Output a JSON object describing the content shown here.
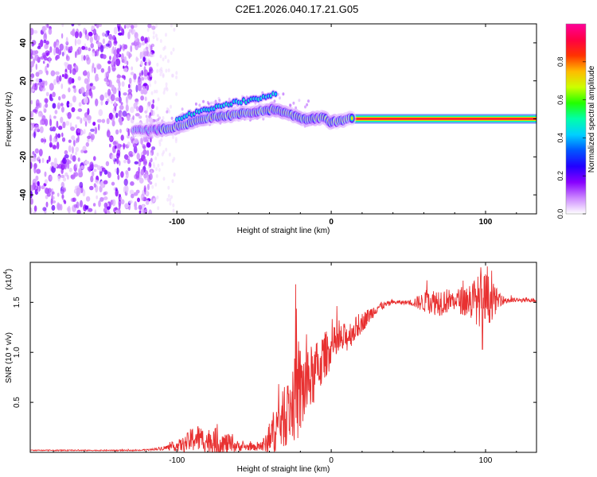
{
  "figure": {
    "title": "C2E1.2026.040.17.21.G05"
  },
  "chart_data": [
    {
      "type": "heatmap",
      "name": "spectrogram",
      "xlabel": "Height of straight line (km)",
      "ylabel": "Frequency (Hz)",
      "xlim": [
        -195,
        133
      ],
      "ylim": [
        -50,
        50
      ],
      "xticks": [
        -100,
        0,
        100
      ],
      "xtick_labels": [
        "-100",
        "0",
        "100"
      ],
      "yticks": [
        -40,
        -20,
        0,
        20,
        40
      ],
      "ytick_labels": [
        "-40",
        "-20",
        "0",
        "20",
        "40"
      ],
      "noise_region_x": [
        -195,
        -115
      ],
      "signal_trace": {
        "x": [
          -125,
          -115,
          -105,
          -95,
          -85,
          -75,
          -65,
          -55,
          -45,
          -38,
          -32,
          -25,
          -18,
          -10,
          -5,
          0,
          5,
          12,
          133
        ],
        "y": [
          -6,
          -6,
          -5,
          -3,
          0,
          1,
          2,
          3,
          4,
          5,
          4,
          2,
          0,
          0,
          1,
          -2,
          -1,
          0,
          0
        ]
      },
      "upper_branch": {
        "x": [
          -100,
          -90,
          -80,
          -70,
          -60,
          -50,
          -42,
          -35
        ],
        "y": [
          0,
          3,
          5,
          7,
          9,
          10,
          12,
          13
        ]
      },
      "colorbar": {
        "label": "Normalized spectral amplitude",
        "range": [
          0,
          1
        ],
        "ticks": [
          0.0,
          0.2,
          0.4,
          0.6,
          0.8
        ],
        "tick_labels": [
          "0.0",
          "0.2",
          "0.4",
          "0.6",
          "0.8"
        ],
        "colors": [
          "#ffffff",
          "#cc88ff",
          "#8800ff",
          "#2200ff",
          "#0055ff",
          "#00d0ff",
          "#00ffaa",
          "#22ff00",
          "#ccff00",
          "#ffbb00",
          "#ff3300",
          "#ff0044",
          "#ff0099"
        ]
      }
    },
    {
      "type": "line",
      "name": "snr",
      "xlabel": "Height of straight line (km)",
      "ylabel": "SNR (10 * v/v)",
      "scale_label": "(x10",
      "scale_exponent": "4",
      "xlim": [
        -195,
        133
      ],
      "ylim": [
        0,
        1.9
      ],
      "xticks": [
        -100,
        0,
        100
      ],
      "xtick_labels": [
        "-100",
        "0",
        "100"
      ],
      "yticks": [
        0.5,
        1.0,
        1.5
      ],
      "ytick_labels": [
        "0.5",
        "1.0",
        "1.5"
      ],
      "color": "#e83030",
      "envelope": {
        "x": [
          -195,
          -150,
          -125,
          -115,
          -105,
          -95,
          -88,
          -82,
          -75,
          -68,
          -60,
          -50,
          -42,
          -36,
          -30,
          -25,
          -20,
          -15,
          -10,
          -5,
          0,
          10,
          20,
          30,
          40,
          50,
          60,
          70,
          80,
          90,
          100,
          110,
          120,
          133
        ],
        "base": [
          0.02,
          0.02,
          0.02,
          0.03,
          0.05,
          0.08,
          0.15,
          0.12,
          0.1,
          0.08,
          0.06,
          0.05,
          0.08,
          0.25,
          0.35,
          0.5,
          0.6,
          0.7,
          0.8,
          0.95,
          1.05,
          1.15,
          1.3,
          1.45,
          1.5,
          1.5,
          1.5,
          1.51,
          1.52,
          1.52,
          1.52,
          1.52,
          1.52,
          1.52
        ],
        "amplitude": [
          0.005,
          0.005,
          0.005,
          0.01,
          0.03,
          0.08,
          0.15,
          0.12,
          0.15,
          0.12,
          0.05,
          0.03,
          0.1,
          0.25,
          0.3,
          0.4,
          0.5,
          0.35,
          0.3,
          0.25,
          0.2,
          0.15,
          0.1,
          0.05,
          0.02,
          0.02,
          0.1,
          0.15,
          0.1,
          0.2,
          0.3,
          0.05,
          0.02,
          0.02
        ]
      },
      "peaks": [
        {
          "x": -23,
          "y": 1.68
        },
        {
          "x": 62,
          "y": 1.72
        },
        {
          "x": 97,
          "y": 1.85
        },
        {
          "x": 98,
          "y": 1.03
        }
      ]
    }
  ]
}
